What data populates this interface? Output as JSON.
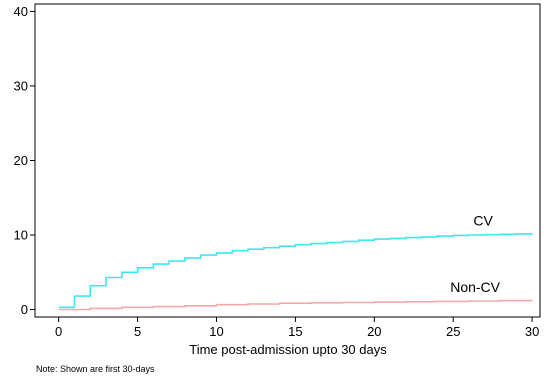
{
  "chart_data": {
    "type": "line",
    "title": "",
    "xlabel": "Time post-admission upto 30 days",
    "ylabel": "",
    "note": "Note: Shown are first 30-days",
    "xlim": [
      -1.5,
      30.5
    ],
    "ylim": [
      -1,
      41
    ],
    "xticks": [
      0,
      5,
      10,
      15,
      20,
      25,
      30
    ],
    "yticks": [
      0,
      10,
      20,
      30,
      40
    ],
    "grid": false,
    "legend": "none",
    "series": [
      {
        "name": "CV",
        "color": "#3fe8ef",
        "step": true,
        "x": [
          0,
          1,
          2,
          3,
          4,
          5,
          6,
          7,
          8,
          9,
          10,
          11,
          12,
          13,
          14,
          15,
          16,
          17,
          18,
          19,
          20,
          21,
          22,
          23,
          24,
          25,
          26,
          27,
          28,
          29,
          30
        ],
        "y": [
          0.3,
          1.8,
          3.2,
          4.3,
          5.0,
          5.6,
          6.1,
          6.5,
          6.9,
          7.3,
          7.6,
          7.9,
          8.1,
          8.3,
          8.5,
          8.7,
          8.85,
          9.0,
          9.15,
          9.3,
          9.45,
          9.55,
          9.65,
          9.75,
          9.85,
          9.95,
          10.0,
          10.05,
          10.1,
          10.15,
          10.2
        ]
      },
      {
        "name": "Non-CV",
        "color": "#f4a9a8",
        "step": true,
        "x": [
          0,
          2,
          4,
          6,
          8,
          10,
          12,
          14,
          16,
          18,
          20,
          22,
          24,
          26,
          28,
          30
        ],
        "y": [
          0.0,
          0.15,
          0.3,
          0.4,
          0.5,
          0.65,
          0.75,
          0.85,
          0.9,
          0.95,
          1.0,
          1.05,
          1.1,
          1.15,
          1.2,
          1.25
        ]
      }
    ]
  }
}
